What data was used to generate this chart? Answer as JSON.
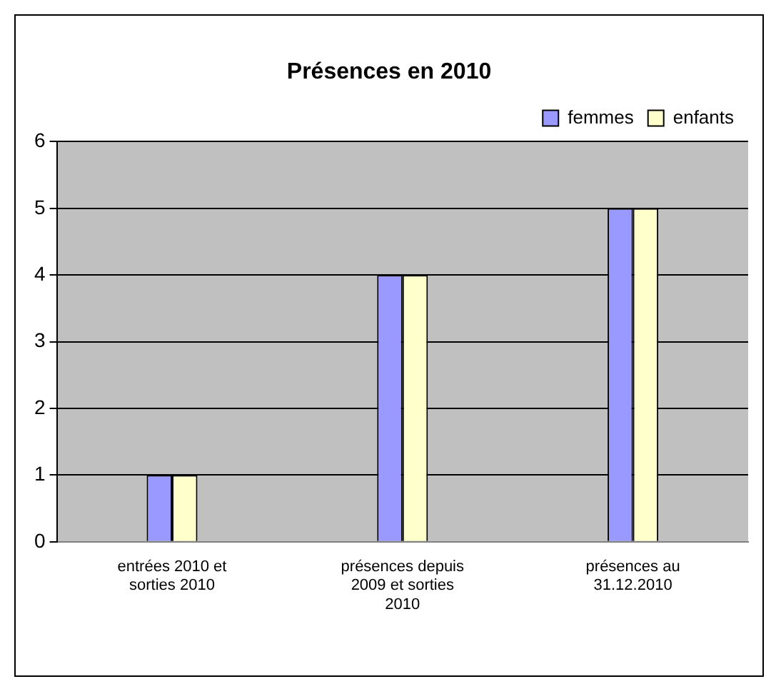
{
  "chart_data": {
    "type": "bar",
    "title": "Présences en 2010",
    "categories": [
      "entrées 2010 et sorties 2010",
      "présences depuis 2009 et sorties 2010",
      "présences au 31.12.2010"
    ],
    "series": [
      {
        "name": "femmes",
        "color": "#9999ff",
        "values": [
          1,
          4,
          5
        ]
      },
      {
        "name": "enfants",
        "color": "#ffffcc",
        "values": [
          1,
          4,
          5
        ]
      }
    ],
    "ylim": [
      0,
      6
    ],
    "yticks": [
      0,
      1,
      2,
      3,
      4,
      5,
      6
    ],
    "grid": "y",
    "legend": "top right"
  }
}
